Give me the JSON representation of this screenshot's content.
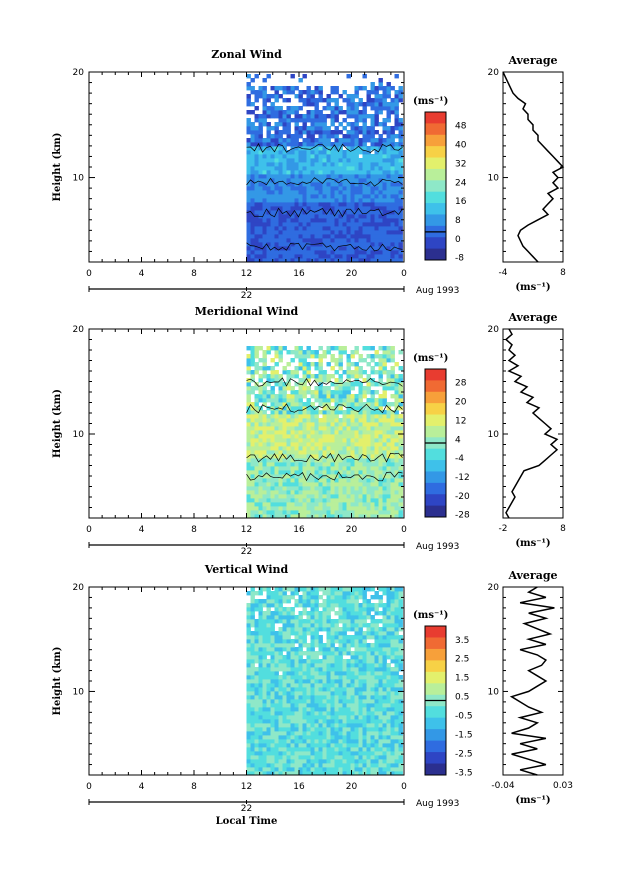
{
  "chart_data": [
    {
      "type": "heatmap",
      "title": "Zonal Wind",
      "ylabel": "Height (km)",
      "xlabel": "",
      "ylim": [
        2,
        20
      ],
      "xlim": [
        0,
        24
      ],
      "x_ticks": [
        "0",
        "4",
        "8",
        "12",
        "16",
        "20",
        "0"
      ],
      "y_ticks": [
        "10",
        "20"
      ],
      "date_label": "22",
      "date_suffix": "Aug 1993",
      "data_start_hour": 12,
      "colorbar": {
        "unit": "(ms⁻¹)",
        "tick_labels": [
          "48",
          "40",
          "32",
          "24",
          "16",
          "8",
          "0",
          "-8"
        ],
        "zero_label": "0"
      },
      "profile": {
        "title": "Average",
        "x_ticks": [
          "-4",
          "8"
        ],
        "xlim": [
          -4,
          8
        ],
        "unit": "(ms⁻¹)",
        "height": [
          2,
          2.5,
          3,
          3.5,
          4,
          4.5,
          5,
          5.5,
          6,
          6.5,
          7,
          7.5,
          8,
          8.5,
          9,
          9.5,
          10,
          10.5,
          11,
          11.5,
          12,
          12.5,
          13,
          13.5,
          14,
          14.5,
          15,
          15.5,
          16,
          16.5,
          17,
          17.5,
          18,
          18.5,
          19,
          19.5,
          20
        ],
        "values": [
          3,
          2,
          1,
          0,
          -0.5,
          -1,
          -0.5,
          1,
          3,
          5,
          4,
          5,
          6,
          5,
          7,
          6,
          7,
          6,
          8,
          7,
          6,
          5,
          4,
          3,
          3,
          2,
          2,
          1,
          1,
          0,
          0.5,
          -1,
          -2,
          -2.5,
          -3,
          -3.5,
          -4
        ]
      }
    },
    {
      "type": "heatmap",
      "title": "Meridional Wind",
      "ylabel": "Height (km)",
      "xlabel": "",
      "ylim": [
        2,
        20
      ],
      "xlim": [
        0,
        24
      ],
      "x_ticks": [
        "0",
        "4",
        "8",
        "12",
        "16",
        "20",
        "0"
      ],
      "y_ticks": [
        "10",
        "20"
      ],
      "date_label": "22",
      "date_suffix": "Aug 1993",
      "data_start_hour": 12,
      "colorbar": {
        "unit": "(ms⁻¹)",
        "tick_labels": [
          "28",
          "20",
          "12",
          "4",
          "-4",
          "-12",
          "-20",
          "-28"
        ],
        "zero_label": ""
      },
      "profile": {
        "title": "Average",
        "x_ticks": [
          "-2",
          "8"
        ],
        "xlim": [
          -2,
          8
        ],
        "unit": "(ms⁻¹)",
        "height": [
          2,
          2.5,
          3,
          3.5,
          4,
          4.5,
          5,
          5.5,
          6,
          6.5,
          7,
          7.5,
          8,
          8.5,
          9,
          9.5,
          10,
          10.5,
          11,
          11.5,
          12,
          12.5,
          13,
          13.5,
          14,
          14.5,
          15,
          15.5,
          16,
          16.5,
          17,
          17.5,
          18,
          18.5,
          19,
          19.5,
          20
        ],
        "values": [
          -1,
          -1.5,
          -1,
          -0.5,
          0,
          -0.5,
          0,
          0.5,
          1,
          1.5,
          4,
          5,
          6,
          7,
          6,
          7,
          5,
          6,
          5,
          4,
          3,
          4,
          2,
          3,
          1,
          2,
          0,
          1,
          -1,
          0.5,
          -1,
          0,
          -1,
          -0.5,
          -1.5,
          -0.5,
          -1
        ]
      }
    },
    {
      "type": "heatmap",
      "title": "Vertical Wind",
      "ylabel": "Height (km)",
      "xlabel": "Local Time",
      "ylim": [
        2,
        20
      ],
      "xlim": [
        0,
        24
      ],
      "x_ticks": [
        "0",
        "4",
        "8",
        "12",
        "16",
        "20",
        "0"
      ],
      "y_ticks": [
        "10",
        "20"
      ],
      "date_label": "22",
      "date_suffix": "Aug 1993",
      "data_start_hour": 12,
      "colorbar": {
        "unit": "(ms⁻¹)",
        "tick_labels": [
          "3.5",
          "2.5",
          "1.5",
          "0.5",
          "-0.5",
          "-1.5",
          "-2.5",
          "-3.5"
        ],
        "zero_label": ""
      },
      "profile": {
        "title": "Average",
        "x_ticks": [
          "-0.04",
          "0.03"
        ],
        "xlim": [
          -0.04,
          0.03
        ],
        "unit": "(ms⁻¹)",
        "height": [
          2,
          2.5,
          3,
          3.5,
          4,
          4.5,
          5,
          5.5,
          6,
          6.5,
          7,
          7.5,
          8,
          8.5,
          9,
          9.5,
          10,
          10.5,
          11,
          11.5,
          12,
          12.5,
          13,
          13.5,
          14,
          14.5,
          15,
          15.5,
          16,
          16.5,
          17,
          17.5,
          18,
          18.5,
          19,
          19.5,
          20
        ],
        "values": [
          0.0,
          -0.02,
          0.01,
          -0.01,
          -0.03,
          0.0,
          -0.02,
          0.01,
          -0.03,
          -0.01,
          0.0,
          -0.02,
          0.005,
          -0.01,
          -0.02,
          -0.03,
          -0.01,
          0.0,
          0.01,
          0.0,
          -0.01,
          0.005,
          0.01,
          0.0,
          -0.02,
          0.01,
          -0.01,
          0.015,
          0.0,
          -0.015,
          0.01,
          -0.01,
          0.02,
          -0.02,
          0.01,
          -0.01,
          0.0
        ]
      }
    }
  ]
}
